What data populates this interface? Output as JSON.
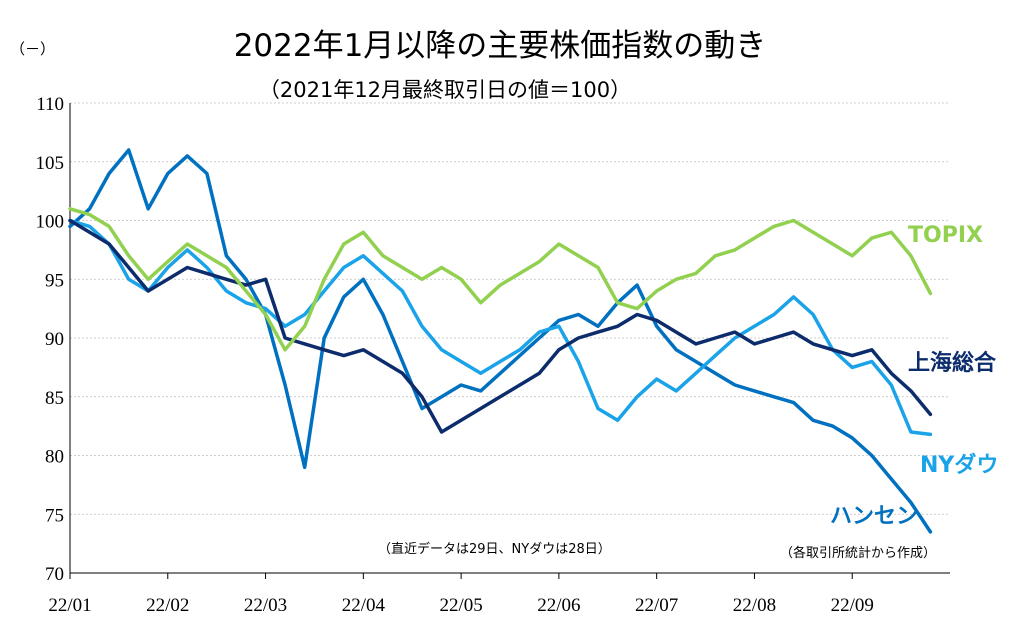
{
  "chart_data": {
    "type": "line",
    "title": "2022年1月以降の主要株価指数の動き",
    "subtitle": "（2021年12月最終取引日の値＝100）",
    "ylabel": "（－）",
    "xlabel": "",
    "ylim": [
      70,
      110
    ],
    "yticks": [
      70,
      75,
      80,
      85,
      90,
      95,
      100,
      105,
      110
    ],
    "xlim": [
      0,
      9
    ],
    "xticks": [
      {
        "pos": 0,
        "label": "22/01"
      },
      {
        "pos": 1,
        "label": "22/02"
      },
      {
        "pos": 2,
        "label": "22/03"
      },
      {
        "pos": 3,
        "label": "22/04"
      },
      {
        "pos": 4,
        "label": "22/05"
      },
      {
        "pos": 5,
        "label": "22/06"
      },
      {
        "pos": 6,
        "label": "22/07"
      },
      {
        "pos": 7,
        "label": "22/08"
      },
      {
        "pos": 8,
        "label": "22/09"
      }
    ],
    "grid": true,
    "legend": "inline-right",
    "series": [
      {
        "name": "TOPIX",
        "color": "#92d050",
        "x": [
          0,
          0.2,
          0.4,
          0.6,
          0.8,
          1.0,
          1.2,
          1.4,
          1.6,
          1.8,
          2.0,
          2.2,
          2.4,
          2.6,
          2.8,
          3.0,
          3.2,
          3.4,
          3.6,
          3.8,
          4.0,
          4.2,
          4.4,
          4.6,
          4.8,
          5.0,
          5.2,
          5.4,
          5.6,
          5.8,
          6.0,
          6.2,
          6.4,
          6.6,
          6.8,
          7.0,
          7.2,
          7.4,
          7.6,
          7.8,
          8.0,
          8.2,
          8.4,
          8.6,
          8.8
        ],
        "values": [
          101,
          100.5,
          99.5,
          97,
          95,
          96.5,
          98,
          97,
          96,
          94,
          92,
          89,
          91,
          95,
          98,
          99,
          97,
          96,
          95,
          96,
          95,
          93,
          94.5,
          95.5,
          96.5,
          98,
          97,
          96,
          93,
          92.5,
          94,
          95,
          95.5,
          97,
          97.5,
          98.5,
          99.5,
          100,
          99,
          98,
          97,
          98.5,
          99,
          97,
          93.8
        ]
      },
      {
        "name": "上海総合",
        "color": "#0d2c6c",
        "x": [
          0,
          0.2,
          0.4,
          0.6,
          0.8,
          1.0,
          1.2,
          1.4,
          1.6,
          1.8,
          2.0,
          2.2,
          2.4,
          2.6,
          2.8,
          3.0,
          3.2,
          3.4,
          3.6,
          3.8,
          4.0,
          4.2,
          4.4,
          4.6,
          4.8,
          5.0,
          5.2,
          5.4,
          5.6,
          5.8,
          6.0,
          6.2,
          6.4,
          6.6,
          6.8,
          7.0,
          7.2,
          7.4,
          7.6,
          7.8,
          8.0,
          8.2,
          8.4,
          8.6,
          8.8
        ],
        "values": [
          100,
          99,
          98,
          96,
          94,
          95,
          96,
          95.5,
          95,
          94.5,
          95,
          90,
          89.5,
          89,
          88.5,
          89,
          88,
          87,
          85,
          82,
          83,
          84,
          85,
          86,
          87,
          89,
          90,
          90.5,
          91,
          92,
          91.5,
          90.5,
          89.5,
          90,
          90.5,
          89.5,
          90,
          90.5,
          89.5,
          89,
          88.5,
          89,
          87,
          85.5,
          83.5
        ]
      },
      {
        "name": "NYダウ",
        "color": "#1aa3e8",
        "x": [
          0,
          0.2,
          0.4,
          0.6,
          0.8,
          1.0,
          1.2,
          1.4,
          1.6,
          1.8,
          2.0,
          2.2,
          2.4,
          2.6,
          2.8,
          3.0,
          3.2,
          3.4,
          3.6,
          3.8,
          4.0,
          4.2,
          4.4,
          4.6,
          4.8,
          5.0,
          5.2,
          5.4,
          5.6,
          5.8,
          6.0,
          6.2,
          6.4,
          6.6,
          6.8,
          7.0,
          7.2,
          7.4,
          7.6,
          7.8,
          8.0,
          8.2,
          8.4,
          8.6,
          8.8
        ],
        "values": [
          100,
          99.5,
          98,
          95,
          94,
          96,
          97.5,
          96,
          94,
          93,
          92.5,
          91,
          92,
          94,
          96,
          97,
          95.5,
          94,
          91,
          89,
          88,
          87,
          88,
          89,
          90.5,
          91,
          88,
          84,
          83,
          85,
          86.5,
          85.5,
          87,
          88.5,
          90,
          91,
          92,
          93.5,
          92,
          89,
          87.5,
          88,
          86,
          82,
          81.8
        ]
      },
      {
        "name": "ハンセン",
        "color": "#0070c0",
        "x": [
          0,
          0.2,
          0.4,
          0.6,
          0.8,
          1.0,
          1.2,
          1.4,
          1.6,
          1.8,
          2.0,
          2.2,
          2.4,
          2.6,
          2.8,
          3.0,
          3.2,
          3.4,
          3.6,
          3.8,
          4.0,
          4.2,
          4.4,
          4.6,
          4.8,
          5.0,
          5.2,
          5.4,
          5.6,
          5.8,
          6.0,
          6.2,
          6.4,
          6.6,
          6.8,
          7.0,
          7.2,
          7.4,
          7.6,
          7.8,
          8.0,
          8.2,
          8.4,
          8.6,
          8.8
        ],
        "values": [
          99.5,
          101,
          104,
          106,
          101,
          104,
          105.5,
          104,
          97,
          95,
          92,
          86,
          79,
          90,
          93.5,
          95,
          92,
          88,
          84,
          85,
          86,
          85.5,
          87,
          88.5,
          90,
          91.5,
          92,
          91,
          93,
          94.5,
          91,
          89,
          88,
          87,
          86,
          85.5,
          85,
          84.5,
          83,
          82.5,
          81.5,
          80,
          78,
          76,
          73.5
        ]
      }
    ],
    "annotations": [
      "（直近データは29日、NYダウは28日）",
      "（各取引所統計から作成）"
    ]
  }
}
